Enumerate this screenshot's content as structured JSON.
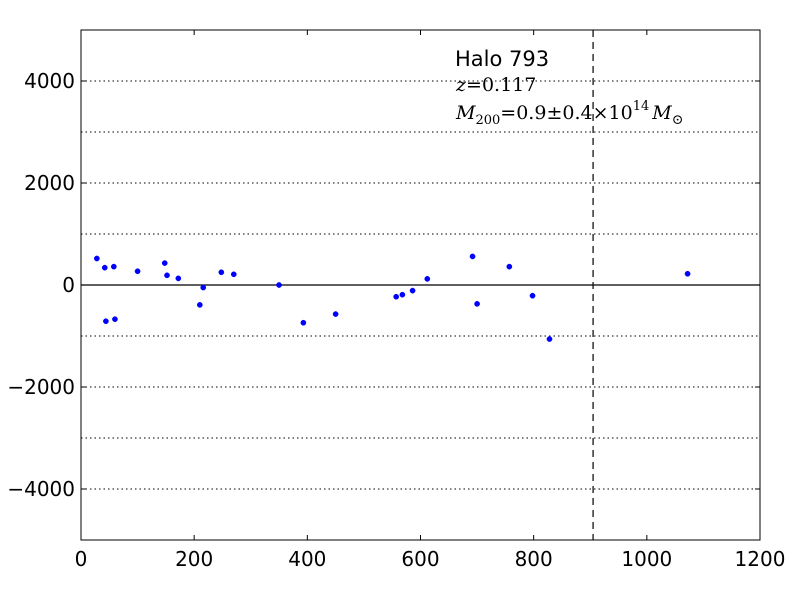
{
  "chart_data": {
    "type": "scatter",
    "title": "",
    "xlabel": "",
    "ylabel": "",
    "xlim": [
      0,
      1200
    ],
    "ylim": [
      -5000,
      5000
    ],
    "x_ticks": [
      0,
      200,
      400,
      600,
      800,
      1000,
      1200
    ],
    "y_ticks": [
      -4000,
      -2000,
      0,
      2000,
      4000
    ],
    "x_tick_labels": [
      "0",
      "200",
      "400",
      "600",
      "800",
      "1000",
      "1200"
    ],
    "y_tick_labels": [
      "−4000",
      "−2000",
      "0",
      "2000",
      "4000"
    ],
    "horizontal_dotted_lines": [
      -4000,
      -3000,
      -2000,
      -1000,
      1000,
      2000,
      3000,
      4000
    ],
    "zero_line": 0,
    "vertical_dashed_line": 905,
    "marker_color": "#0000ff",
    "annotations": {
      "halo": "Halo 793",
      "redshift_symbol": "z",
      "redshift_value": "0.117",
      "mass_symbol": "M",
      "mass_subscript": "200",
      "mass_value": "0.9",
      "mass_error": "0.4",
      "mass_exponent": "14",
      "mass_unit": "M",
      "mass_unit_subscript": "⊙"
    },
    "points": [
      {
        "x": 28,
        "y": 520
      },
      {
        "x": 42,
        "y": 340
      },
      {
        "x": 44,
        "y": -710
      },
      {
        "x": 58,
        "y": 360
      },
      {
        "x": 60,
        "y": -670
      },
      {
        "x": 100,
        "y": 270
      },
      {
        "x": 148,
        "y": 430
      },
      {
        "x": 152,
        "y": 190
      },
      {
        "x": 172,
        "y": 130
      },
      {
        "x": 210,
        "y": -390
      },
      {
        "x": 216,
        "y": -50
      },
      {
        "x": 248,
        "y": 250
      },
      {
        "x": 270,
        "y": 210
      },
      {
        "x": 350,
        "y": 0
      },
      {
        "x": 393,
        "y": -740
      },
      {
        "x": 450,
        "y": -570
      },
      {
        "x": 557,
        "y": -230
      },
      {
        "x": 568,
        "y": -190
      },
      {
        "x": 586,
        "y": -110
      },
      {
        "x": 612,
        "y": 120
      },
      {
        "x": 692,
        "y": 560
      },
      {
        "x": 700,
        "y": -370
      },
      {
        "x": 757,
        "y": 360
      },
      {
        "x": 798,
        "y": -210
      },
      {
        "x": 828,
        "y": -1060
      },
      {
        "x": 1072,
        "y": 220
      }
    ]
  }
}
